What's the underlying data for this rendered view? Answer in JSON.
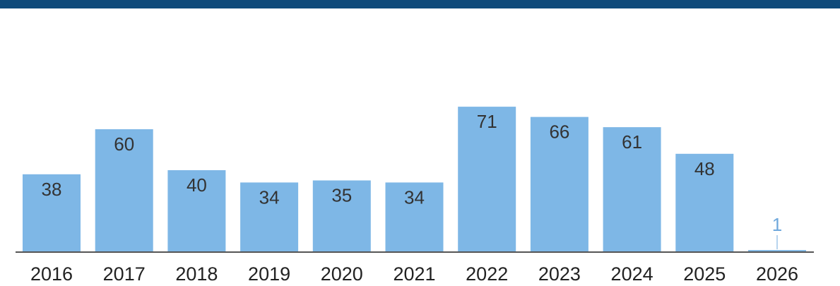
{
  "colors": {
    "banner": "#0f4a7a",
    "bar": "#7eb7e6",
    "axis": "#555555",
    "value_label": "#333333",
    "small_value_label": "#6fa8dc"
  },
  "chart_data": {
    "type": "bar",
    "categories": [
      "2016",
      "2017",
      "2018",
      "2019",
      "2020",
      "2021",
      "2022",
      "2023",
      "2024",
      "2025",
      "2026"
    ],
    "values": [
      38,
      60,
      40,
      34,
      35,
      34,
      71,
      66,
      61,
      48,
      1
    ],
    "ylim": [
      0,
      75
    ],
    "grid": false,
    "legend": "none"
  }
}
